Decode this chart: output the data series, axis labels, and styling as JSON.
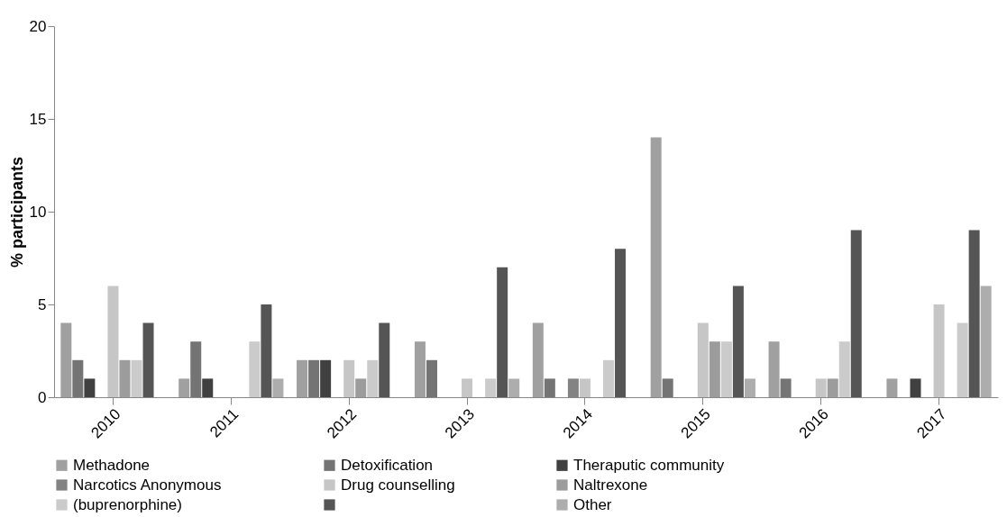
{
  "chart_data": {
    "type": "bar",
    "ylabel": "% participants",
    "categories": [
      "2010",
      "2011",
      "2012",
      "2013",
      "2014",
      "2015",
      "2016",
      "2017"
    ],
    "ylim": [
      0,
      20
    ],
    "yticks": [
      0,
      5,
      10,
      15,
      20
    ],
    "grid": false,
    "legend": "bottom",
    "series": [
      {
        "name": "Methadone",
        "color": "#a0a0a0",
        "values": [
          4,
          1,
          2,
          3,
          4,
          14,
          3,
          1
        ]
      },
      {
        "name": "Detoxification",
        "color": "#747474",
        "values": [
          2,
          3,
          2,
          2,
          1,
          1,
          1,
          0
        ]
      },
      {
        "name": "Theraputic community",
        "color": "#404040",
        "values": [
          1,
          1,
          2,
          0,
          0,
          0,
          0,
          1
        ]
      },
      {
        "name": "Narcotics Anonymous",
        "color": "#838383",
        "values": [
          0,
          0,
          0,
          0,
          1,
          0,
          0,
          0
        ]
      },
      {
        "name": "Drug counselling",
        "color": "#c6c6c6",
        "values": [
          6,
          0,
          2,
          1,
          1,
          4,
          1,
          5
        ]
      },
      {
        "name": "Naltrexone",
        "color": "#9c9c9c",
        "values": [
          2,
          0,
          1,
          0,
          0,
          3,
          1,
          0
        ]
      },
      {
        "name": "(buprenorphine)",
        "color": "#cbcbcb",
        "values": [
          2,
          3,
          2,
          1,
          2,
          3,
          3,
          4
        ]
      },
      {
        "color": "#555555",
        "values": [
          4,
          5,
          4,
          7,
          8,
          6,
          9,
          9
        ]
      },
      {
        "name": "Other",
        "color": "#adadad",
        "values": [
          0,
          1,
          0,
          1,
          0,
          1,
          0,
          6
        ]
      }
    ]
  }
}
